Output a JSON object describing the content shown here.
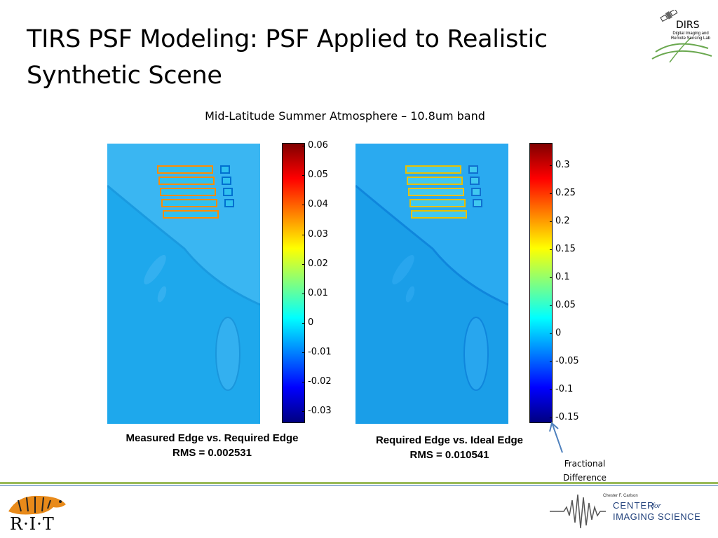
{
  "slide": {
    "title_line1": "TIRS PSF Modeling: PSF Applied to Realistic",
    "title_line2": "Synthetic Scene",
    "subtitle": "Mid-Latitude Summer Atmosphere – 10.8um band"
  },
  "logos": {
    "dirs_word": "DIRS",
    "dirs_subtitle": "Digital Imaging and Remote Sensing Lab",
    "rit_word": "R·I·T",
    "cis_small": "Chester F. Carlson",
    "cis_center": "CENTER",
    "cis_for": "for",
    "cis_imaging": "IMAGING SCIENCE"
  },
  "colorbar_left": {
    "ticks": [
      "0.06",
      "0.05",
      "0.04",
      "0.03",
      "0.02",
      "0.01",
      "0",
      "-0.01",
      "-0.02",
      "-0.03"
    ],
    "range": [
      -0.034,
      0.061
    ]
  },
  "colorbar_right": {
    "ticks": [
      "0.3",
      "0.25",
      "0.2",
      "0.15",
      "0.1",
      "0.05",
      "0",
      "-0.05",
      "-0.1",
      "-0.15"
    ],
    "range": [
      -0.16,
      0.34
    ]
  },
  "captions": {
    "left_line1": "Measured Edge vs. Required Edge",
    "left_line2": "RMS = 0.002531",
    "right_line1": "Required Edge vs. Ideal Edge",
    "right_line2": "RMS = 0.010541"
  },
  "annotation": {
    "line1": "Fractional",
    "line2": "Difference"
  },
  "colors": {
    "map_background": "#1ea8ec",
    "map_water": "#3ab6f2",
    "accent_green": "#9bbb59",
    "accent_blue": "#4f81bd"
  }
}
